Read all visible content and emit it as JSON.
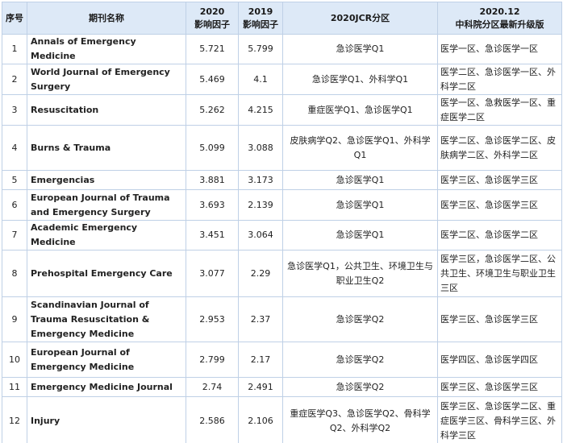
{
  "headers": {
    "no": "序号",
    "name": "期刊名称",
    "if2020_line1": "2020",
    "if2020_line2": "影响因子",
    "if2019_line1": "2019",
    "if2019_line2": "影响因子",
    "jcr": "2020JCR分区",
    "cas_line1": "2020.12",
    "cas_line2": "中科院分区最新升级版"
  },
  "rows": [
    {
      "no": "1",
      "name": "Annals of Emergency Medicine",
      "if2020": "5.721",
      "if2019": "5.799",
      "jcr": "急诊医学Q1",
      "cas": "医学一区、急诊医学一区"
    },
    {
      "no": "2",
      "name": "World Journal of Emergency Surgery",
      "if2020": "5.469",
      "if2019": "4.1",
      "jcr": "急诊医学Q1、外科学Q1",
      "cas": "医学二区、急诊医学一区、外科学二区"
    },
    {
      "no": "3",
      "name": "Resuscitation",
      "if2020": "5.262",
      "if2019": "4.215",
      "jcr": "重症医学Q1、急诊医学Q1",
      "cas": "医学一区、急救医学一区、重症医学二区"
    },
    {
      "no": "4",
      "name": "Burns & Trauma",
      "if2020": "5.099",
      "if2019": "3.088",
      "jcr": "皮肤病学Q2、急诊医学Q1、外科学Q1",
      "cas": "医学二区、急诊医学二区、皮肤病学二区、外科学二区"
    },
    {
      "no": "5",
      "name": "Emergencias",
      "if2020": "3.881",
      "if2019": "3.173",
      "jcr": "急诊医学Q1",
      "cas": "医学三区、急诊医学三区"
    },
    {
      "no": "6",
      "name": "European Journal of Trauma and Emergency Surgery",
      "if2020": "3.693",
      "if2019": "2.139",
      "jcr": "急诊医学Q1",
      "cas": "医学三区、急诊医学三区"
    },
    {
      "no": "7",
      "name": "Academic Emergency Medicine",
      "if2020": "3.451",
      "if2019": "3.064",
      "jcr": "急诊医学Q1",
      "cas": "医学二区、急诊医学二区"
    },
    {
      "no": "8",
      "name": "Prehospital Emergency Care",
      "if2020": "3.077",
      "if2019": "2.29",
      "jcr": "急诊医学Q1，公共卫生、环境卫生与职业卫生Q2",
      "cas": "医学三区，急诊医学二区、公共卫生、环境卫生与职业卫生三区"
    },
    {
      "no": "9",
      "name": "Scandinavian Journal of Trauma Resuscitation & Emergency Medicine",
      "if2020": "2.953",
      "if2019": "2.37",
      "jcr": "急诊医学Q2",
      "cas": "医学三区、急诊医学三区"
    },
    {
      "no": "10",
      "name": "European Journal of Emergency Medicine",
      "if2020": "2.799",
      "if2019": "2.17",
      "jcr": "急诊医学Q2",
      "cas": "医学四区、急诊医学四区"
    },
    {
      "no": "11",
      "name": "Emergency Medicine Journal",
      "if2020": "2.74",
      "if2019": "2.491",
      "jcr": "急诊医学Q2",
      "cas": "医学三区、急诊医学三区"
    },
    {
      "no": "12",
      "name": "Injury",
      "if2020": "2.586",
      "if2019": "2.106",
      "jcr": "重症医学Q3、急诊医学Q2、骨科学Q2、外科学Q2",
      "cas": "医学三区、急诊医学二区、重症医学三区、骨科学三区、外科学三区"
    }
  ]
}
